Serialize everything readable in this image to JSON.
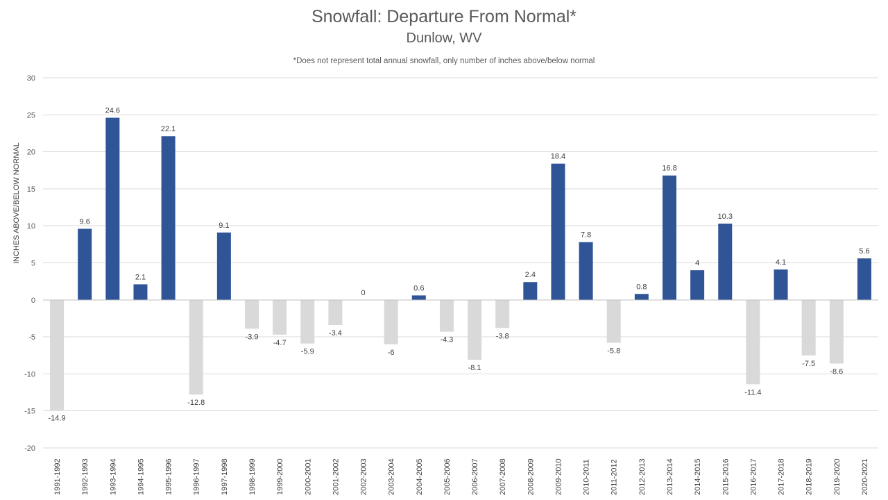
{
  "chart_data": {
    "type": "bar",
    "title": "Snowfall: Departure From Normal*",
    "subtitle": "Dunlow, WV",
    "note": "*Does not represent  total annual snowfall, only number of inches above/below normal",
    "xlabel": "",
    "ylabel": "INCHES ABOVE/BELOW NORMAL",
    "ylim": [
      -20,
      30
    ],
    "yticks": [
      30,
      25,
      20,
      15,
      10,
      5,
      0,
      -5,
      -10,
      -15,
      -20
    ],
    "grid": true,
    "legend": "none",
    "colors": {
      "positive": "#2F5597",
      "negative": "#D9D9D9"
    },
    "categories": [
      "1991-1992",
      "1992-1993",
      "1993-1994",
      "1994-1995",
      "1995-1996",
      "1996-1997",
      "1997-1998",
      "1998-1999",
      "1999-2000",
      "2000-2001",
      "2001-2002",
      "2002-2003",
      "2003-2004",
      "2004-2005",
      "2005-2006",
      "2006-2007",
      "2007-2008",
      "2008-2009",
      "2009-2010",
      "2010-2011",
      "2011-2012",
      "2012-2013",
      "2013-2014",
      "2014-2015",
      "2015-2016",
      "2016-2017",
      "2017-2018",
      "2018-2019",
      "2019-2020",
      "2020-2021"
    ],
    "values": [
      -14.9,
      9.6,
      24.6,
      2.1,
      22.1,
      -12.8,
      9.1,
      -3.9,
      -4.7,
      -5.9,
      -3.4,
      0,
      -6,
      0.6,
      -4.3,
      -8.1,
      -3.8,
      2.4,
      18.4,
      7.8,
      -5.8,
      0.8,
      16.8,
      4,
      10.3,
      -11.4,
      4.1,
      -7.5,
      -8.6,
      5.6
    ],
    "data_labels": [
      "-14.9",
      "9.6",
      "24.6",
      "2.1",
      "22.1",
      "-12.8",
      "9.1",
      "-3.9",
      "-4.7",
      "-5.9",
      "-3.4",
      "0",
      "-6",
      "0.6",
      "-4.3",
      "-8.1",
      "-3.8",
      "2.4",
      "18.4",
      "7.8",
      "-5.8",
      "0.8",
      "16.8",
      "4",
      "10.3",
      "-11.4",
      "4.1",
      "-7.5",
      "-8.6",
      "5.6"
    ]
  }
}
